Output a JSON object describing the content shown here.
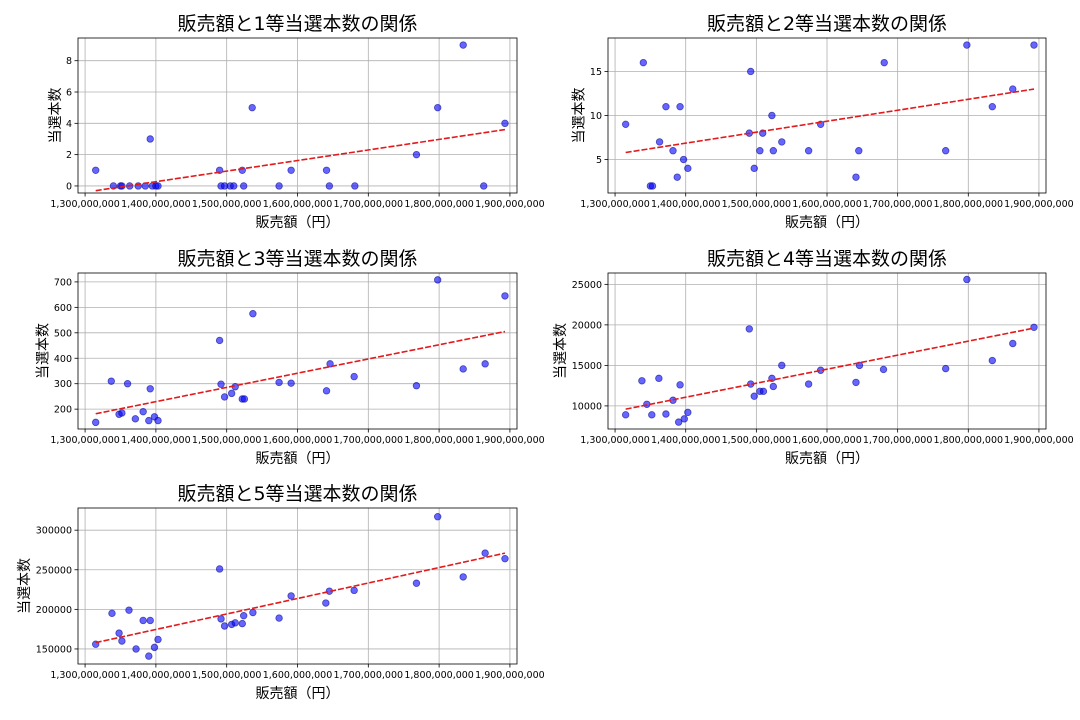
{
  "figure": {
    "x_label": "販売額（円）",
    "y_label": "当選本数"
  },
  "colors": {
    "point": "#0000ff",
    "trend": "#e31a1c",
    "grid": "#b0b0b0"
  },
  "chart_data": [
    {
      "type": "scatter",
      "title": "販売額と1等当選本数の関係",
      "xlabel": "販売額（円）",
      "ylabel": "当選本数",
      "xlim": [
        1290000000,
        1910000000
      ],
      "ylim": [
        -0.45,
        9.45
      ],
      "xticks": [
        1300000000,
        1400000000,
        1500000000,
        1600000000,
        1700000000,
        1800000000,
        1900000000
      ],
      "xtick_labels": [
        "1,300,000,000",
        "1,400,000,000",
        "1,500,000,000",
        "1,600,000,000",
        "1,700,000,000",
        "1,800,000,000",
        "1,900,000,000"
      ],
      "yticks": [
        0,
        2,
        4,
        6,
        8
      ],
      "ytick_labels": [
        "0",
        "2",
        "4",
        "6",
        "8"
      ],
      "x": [
        1315000000,
        1340000000,
        1350000000,
        1352000000,
        1363000000,
        1375000000,
        1385000000,
        1392000000,
        1395000000,
        1400000000,
        1403000000,
        1490000000,
        1492000000,
        1497000000,
        1505000000,
        1510000000,
        1522000000,
        1524000000,
        1536000000,
        1574000000,
        1591000000,
        1641000000,
        1645000000,
        1681000000,
        1768000000,
        1798000000,
        1834000000,
        1863000000,
        1893000000
      ],
      "y": [
        1,
        0,
        0,
        0,
        0,
        0,
        0,
        3,
        0,
        0,
        0,
        1,
        0,
        0,
        0,
        0,
        1,
        0,
        5,
        0,
        1,
        1,
        0,
        0,
        2,
        5,
        9,
        0,
        4
      ],
      "trend": {
        "x": [
          1315000000,
          1893000000
        ],
        "y": [
          -0.3,
          3.6
        ]
      }
    },
    {
      "type": "scatter",
      "title": "販売額と2等当選本数の関係",
      "xlabel": "販売額（円）",
      "ylabel": "当選本数",
      "xlim": [
        1290000000,
        1910000000
      ],
      "ylim": [
        1.2,
        18.8
      ],
      "xticks": [
        1300000000,
        1400000000,
        1500000000,
        1600000000,
        1700000000,
        1800000000,
        1900000000
      ],
      "xtick_labels": [
        "1,300,000,000",
        "1,400,000,000",
        "1,500,000,000",
        "1,600,000,000",
        "1,700,000,000",
        "1,800,000,000",
        "1,900,000,000"
      ],
      "yticks": [
        5,
        10,
        15
      ],
      "ytick_labels": [
        "5",
        "10",
        "15"
      ],
      "x": [
        1315000000,
        1340000000,
        1350000000,
        1353000000,
        1363000000,
        1372000000,
        1382000000,
        1388000000,
        1392000000,
        1397000000,
        1403000000,
        1490000000,
        1492000000,
        1497000000,
        1505000000,
        1509000000,
        1522000000,
        1524000000,
        1536000000,
        1574000000,
        1591000000,
        1641000000,
        1645000000,
        1681000000,
        1768000000,
        1798000000,
        1834000000,
        1863000000,
        1893000000
      ],
      "y": [
        9,
        16,
        2,
        2,
        7,
        11,
        6,
        3,
        11,
        5,
        4,
        8,
        15,
        4,
        6,
        8,
        10,
        6,
        7,
        6,
        9,
        3,
        6,
        16,
        6,
        18,
        11,
        13,
        18
      ],
      "trend": {
        "x": [
          1315000000,
          1893000000
        ],
        "y": [
          5.8,
          13.0
        ]
      }
    },
    {
      "type": "scatter",
      "title": "販売額と3等当選本数の関係",
      "xlabel": "販売額（円）",
      "ylabel": "当選本数",
      "xlim": [
        1290000000,
        1910000000
      ],
      "ylim": [
        122,
        735
      ],
      "xticks": [
        1300000000,
        1400000000,
        1500000000,
        1600000000,
        1700000000,
        1800000000,
        1900000000
      ],
      "xtick_labels": [
        "1,300,000,000",
        "1,400,000,000",
        "1,500,000,000",
        "1,600,000,000",
        "1,700,000,000",
        "1,800,000,000",
        "1,900,000,000"
      ],
      "yticks": [
        200,
        300,
        400,
        500,
        600,
        700
      ],
      "ytick_labels": [
        "200",
        "300",
        "400",
        "500",
        "600",
        "700"
      ],
      "x": [
        1315000000,
        1337000000,
        1348000000,
        1352000000,
        1360000000,
        1371000000,
        1382000000,
        1390000000,
        1392000000,
        1398000000,
        1403000000,
        1490000000,
        1492000000,
        1497000000,
        1507000000,
        1512000000,
        1522000000,
        1525000000,
        1537000000,
        1574000000,
        1591000000,
        1641000000,
        1646000000,
        1680000000,
        1768000000,
        1798000000,
        1834000000,
        1865000000,
        1893000000
      ],
      "y": [
        148,
        310,
        180,
        185,
        300,
        162,
        190,
        155,
        280,
        170,
        155,
        470,
        298,
        248,
        262,
        288,
        240,
        240,
        575,
        305,
        302,
        272,
        378,
        328,
        292,
        708,
        358,
        378,
        645
      ],
      "trend": {
        "x": [
          1315000000,
          1893000000
        ],
        "y": [
          182,
          505
        ]
      }
    },
    {
      "type": "scatter",
      "title": "販売額と4等当選本数の関係",
      "xlabel": "販売額（円）",
      "ylabel": "当選本数",
      "xlim": [
        1290000000,
        1910000000
      ],
      "ylim": [
        7150,
        26400
      ],
      "xticks": [
        1300000000,
        1400000000,
        1500000000,
        1600000000,
        1700000000,
        1800000000,
        1900000000
      ],
      "xtick_labels": [
        "1,300,000,000",
        "1,400,000,000",
        "1,500,000,000",
        "1,600,000,000",
        "1,700,000,000",
        "1,800,000,000",
        "1,900,000,000"
      ],
      "yticks": [
        10000,
        15000,
        20000,
        25000
      ],
      "ytick_labels": [
        "10000",
        "15000",
        "20000",
        "25000"
      ],
      "x": [
        1315000000,
        1338000000,
        1345000000,
        1352000000,
        1362000000,
        1372000000,
        1382000000,
        1390000000,
        1392000000,
        1398000000,
        1403000000,
        1490000000,
        1492000000,
        1497000000,
        1505000000,
        1510000000,
        1522000000,
        1524000000,
        1536000000,
        1574000000,
        1591000000,
        1641000000,
        1646000000,
        1680000000,
        1768000000,
        1798000000,
        1834000000,
        1863000000,
        1893000000
      ],
      "y": [
        8900,
        13100,
        10200,
        8900,
        13400,
        9000,
        10700,
        8000,
        12600,
        8400,
        9200,
        19500,
        12700,
        11200,
        11800,
        11800,
        13400,
        12400,
        15000,
        12700,
        14400,
        12900,
        15000,
        14500,
        14600,
        25600,
        15600,
        17700,
        19700
      ],
      "trend": {
        "x": [
          1315000000,
          1893000000
        ],
        "y": [
          9600,
          19600
        ]
      }
    },
    {
      "type": "scatter",
      "title": "販売額と5等当選本数の関係",
      "xlabel": "販売額（円）",
      "ylabel": "当選本数",
      "xlim": [
        1290000000,
        1910000000
      ],
      "ylim": [
        131000,
        328000
      ],
      "xticks": [
        1300000000,
        1400000000,
        1500000000,
        1600000000,
        1700000000,
        1800000000,
        1900000000
      ],
      "xtick_labels": [
        "1,300,000,000",
        "1,400,000,000",
        "1,500,000,000",
        "1,600,000,000",
        "1,700,000,000",
        "1,800,000,000",
        "1,900,000,000"
      ],
      "yticks": [
        150000,
        200000,
        250000,
        300000
      ],
      "ytick_labels": [
        "150000",
        "200000",
        "250000",
        "300000"
      ],
      "x": [
        1315000000,
        1338000000,
        1348000000,
        1352000000,
        1362000000,
        1372000000,
        1382000000,
        1390000000,
        1392000000,
        1398000000,
        1403000000,
        1490000000,
        1492000000,
        1497000000,
        1507000000,
        1512000000,
        1522000000,
        1524000000,
        1537000000,
        1574000000,
        1591000000,
        1640000000,
        1645000000,
        1680000000,
        1768000000,
        1798000000,
        1834000000,
        1865000000,
        1893000000
      ],
      "y": [
        156000,
        195000,
        170000,
        160000,
        199000,
        150000,
        186000,
        141000,
        186000,
        152000,
        162000,
        251000,
        188000,
        179000,
        181000,
        183000,
        182000,
        192000,
        196000,
        189000,
        217000,
        208000,
        223000,
        224000,
        233000,
        317000,
        241000,
        271000,
        264000
      ],
      "trend": {
        "x": [
          1315000000,
          1893000000
        ],
        "y": [
          158000,
          271000
        ]
      }
    }
  ]
}
